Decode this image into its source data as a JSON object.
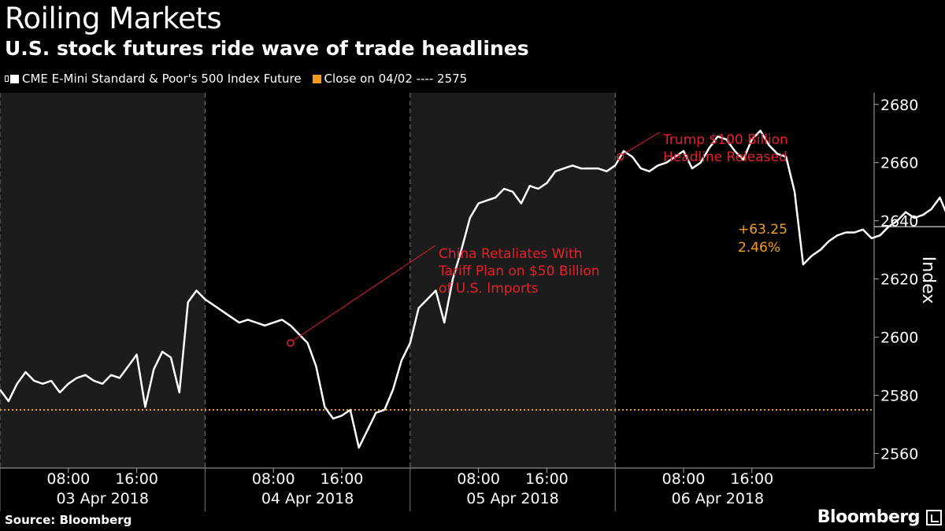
{
  "title": "Roiling Markets",
  "subtitle": "U.S. stock futures ride wave of trade headlines",
  "legend": {
    "series_label": "CME E-Mini Standard & Poor's 500 Index Future",
    "series_color": "#ffffff",
    "close_label": "Close on 04/02 ---- 2575",
    "close_color": "#f59b1a"
  },
  "source": "Source: Bloomberg",
  "brand": "Bloomberg",
  "colors": {
    "annotation": "#e8202a",
    "change": "#f5a018",
    "shade": "#1c1c1c"
  },
  "chart_data": {
    "type": "line",
    "ylabel": "Index",
    "ylim": [
      2555,
      2684
    ],
    "yticks": [
      2560,
      2580,
      2600,
      2620,
      2640,
      2660,
      2680
    ],
    "reference_line": {
      "label": "Close on 04/02",
      "value": 2575
    },
    "days": [
      {
        "label": "03 Apr 2018",
        "ticks": [
          "08:00",
          "16:00"
        ]
      },
      {
        "label": "04 Apr 2018",
        "ticks": [
          "08:00",
          "16:00"
        ]
      },
      {
        "label": "05 Apr 2018",
        "ticks": [
          "08:00",
          "16:00"
        ]
      },
      {
        "label": "06 Apr 2018",
        "ticks": [
          "08:00",
          "16:00"
        ]
      }
    ],
    "shaded_days": [
      "03 Apr 2018",
      "05 Apr 2018"
    ],
    "x_hours_from_apr3": [
      0,
      1,
      2,
      3,
      4,
      5,
      6,
      7,
      8,
      9,
      10,
      11,
      12,
      13,
      14,
      15,
      16,
      17,
      18,
      19,
      20,
      21,
      22,
      23,
      24,
      25,
      26,
      27,
      28,
      29,
      30,
      31,
      32,
      33,
      34,
      35,
      36,
      37,
      38,
      39,
      40,
      41,
      42,
      43,
      44,
      45,
      46,
      47,
      48,
      49,
      50,
      51,
      52,
      53,
      54,
      55,
      56,
      57,
      58,
      59,
      60,
      61,
      62,
      63,
      64,
      65,
      66,
      67,
      68,
      69,
      70,
      71,
      72,
      73,
      74,
      75,
      76,
      77,
      78,
      79,
      80,
      81,
      82,
      83,
      84,
      85,
      86,
      87,
      88,
      89,
      90,
      91,
      92,
      93,
      94,
      95,
      96,
      97,
      98,
      99,
      100,
      101,
      102,
      103,
      104,
      105,
      106,
      107,
      108,
      109,
      110,
      111,
      112
    ],
    "series": [
      {
        "name": "CME E-Mini Standard & Poor's 500 Index Future",
        "values": [
          2582,
          2578,
          2584,
          2588,
          2585,
          2584,
          2585,
          2581,
          2584,
          2586,
          2587,
          2585,
          2584,
          2587,
          2586,
          2590,
          2594,
          2576,
          2589,
          2595,
          2593,
          2581,
          2612,
          2616,
          2613,
          2611,
          2609,
          2607,
          2605,
          2606,
          2605,
          2604,
          2605,
          2606,
          2604,
          2601,
          2598,
          2590,
          2576,
          2572,
          2573,
          2575,
          2562,
          2568,
          2574,
          2575,
          2582,
          2592,
          2598,
          2610,
          2613,
          2616,
          2605,
          2620,
          2630,
          2641,
          2646,
          2647,
          2648,
          2651,
          2650,
          2646,
          2652,
          2651,
          2653,
          2657,
          2658,
          2659,
          2658,
          2658,
          2658,
          2657,
          2659,
          2664,
          2662,
          2658,
          2657,
          2659,
          2660,
          2662,
          2664,
          2658,
          2660,
          2665,
          2669,
          2668,
          2664,
          2661,
          2668,
          2671,
          2666,
          2663,
          2662,
          2650,
          2625,
          2628,
          2630,
          2633,
          2635,
          2636,
          2636,
          2637,
          2634,
          2635,
          2638,
          2640,
          2643,
          2641,
          2642,
          2644,
          2648,
          2641,
          2638
        ]
      }
    ],
    "annotations": [
      {
        "text": [
          "China Retaliates With",
          "Tariff Plan on $50 Billion",
          "of U.S. Imports"
        ]
      },
      {
        "text": [
          "Trump $100 Billion",
          "Headline Released"
        ]
      }
    ],
    "last_change": {
      "points": "+63.25",
      "percent": "2.46%"
    }
  }
}
